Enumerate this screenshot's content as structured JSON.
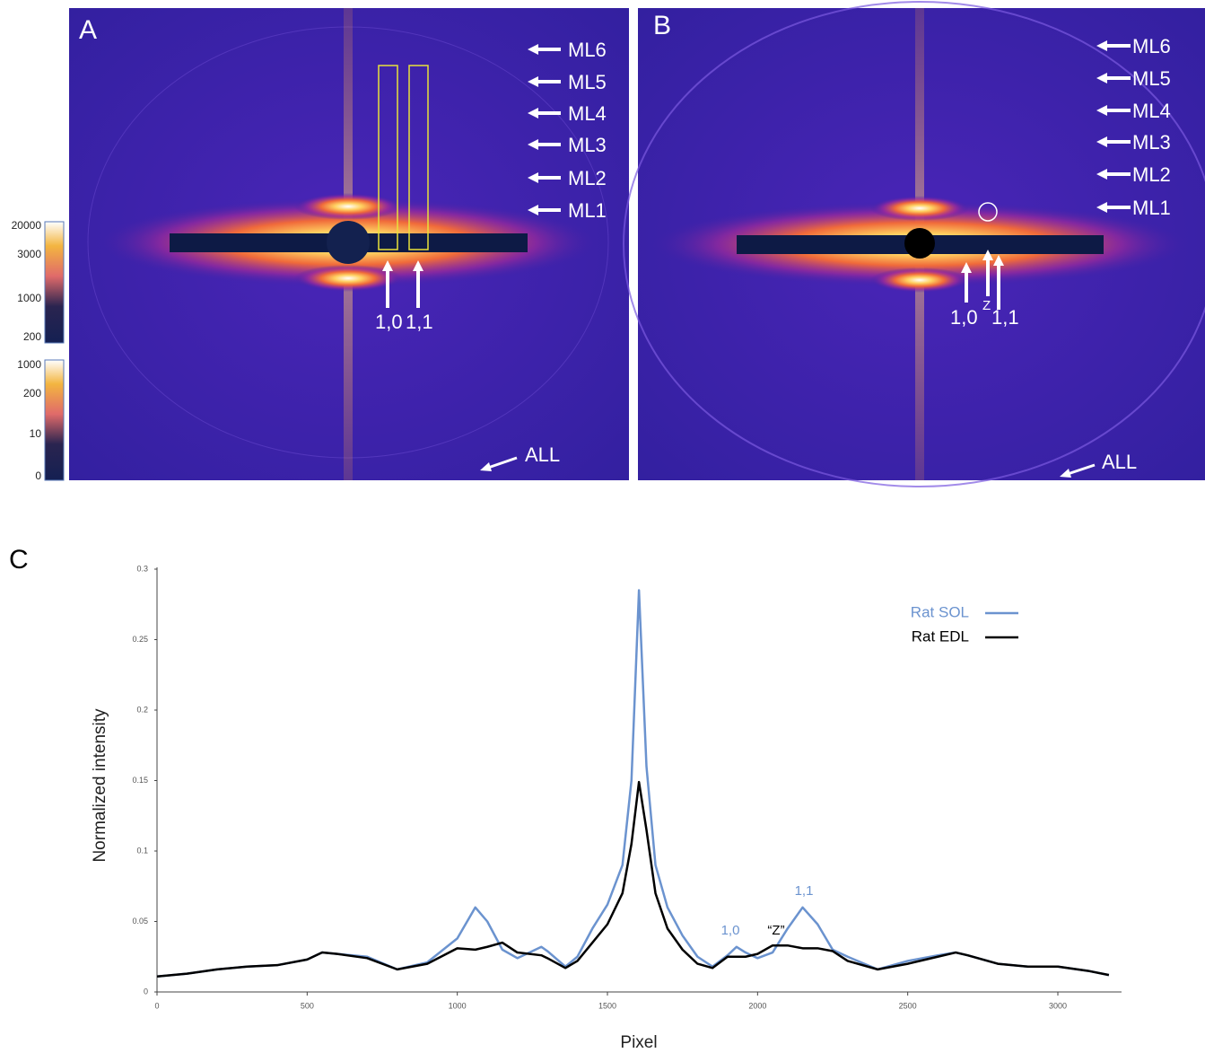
{
  "panel_a": {
    "label": "A",
    "annotations": [
      "ML6",
      "ML5",
      "ML4",
      "ML3",
      "ML2",
      "ML1"
    ],
    "reflections": [
      "1,0",
      "1,1"
    ],
    "all": "ALL"
  },
  "panel_b": {
    "label": "B",
    "annotations": [
      "ML6",
      "ML5",
      "ML4",
      "ML3",
      "ML2",
      "ML1"
    ],
    "reflections": [
      "1,0",
      "1,1"
    ],
    "z": "Z",
    "all": "ALL"
  },
  "colorbars": [
    {
      "ticks": [
        20000,
        3000,
        1000,
        200
      ]
    },
    {
      "ticks": [
        1000,
        200,
        10,
        0
      ]
    }
  ],
  "chart_data": {
    "type": "line",
    "panel_label": "C",
    "xlabel": "Pixel",
    "ylabel": "Normalized intensity",
    "xlim": [
      0,
      3200
    ],
    "xticks": [
      0,
      500,
      1000,
      1500,
      2000,
      2500,
      3000
    ],
    "ylim": [
      0,
      0.3
    ],
    "yticks": [
      0,
      0.05,
      0.1,
      0.15,
      0.2,
      0.25,
      0.3
    ],
    "legend": "upper right",
    "x": [
      0,
      100,
      200,
      300,
      400,
      500,
      550,
      600,
      700,
      800,
      900,
      1000,
      1060,
      1100,
      1150,
      1200,
      1280,
      1300,
      1360,
      1400,
      1450,
      1500,
      1550,
      1580,
      1605,
      1630,
      1660,
      1700,
      1750,
      1800,
      1850,
      1900,
      1930,
      1960,
      2000,
      2050,
      2100,
      2150,
      2200,
      2250,
      2300,
      2400,
      2500,
      2600,
      2660,
      2700,
      2800,
      2900,
      3000,
      3100,
      3170
    ],
    "series": [
      {
        "name": "Rat SOL",
        "color": "#6b93cf",
        "values": [
          0.011,
          0.013,
          0.016,
          0.018,
          0.019,
          0.023,
          0.028,
          0.027,
          0.025,
          0.016,
          0.021,
          0.038,
          0.06,
          0.05,
          0.03,
          0.024,
          0.032,
          0.029,
          0.018,
          0.025,
          0.045,
          0.062,
          0.09,
          0.15,
          0.285,
          0.16,
          0.09,
          0.06,
          0.04,
          0.025,
          0.018,
          0.026,
          0.032,
          0.028,
          0.024,
          0.028,
          0.045,
          0.06,
          0.048,
          0.03,
          0.025,
          0.016,
          0.022,
          0.026,
          0.028,
          0.026,
          0.02,
          0.018,
          0.018,
          0.015,
          0.012
        ]
      },
      {
        "name": "Rat EDL",
        "color": "#000000",
        "values": [
          0.011,
          0.013,
          0.016,
          0.018,
          0.019,
          0.023,
          0.028,
          0.027,
          0.024,
          0.016,
          0.02,
          0.031,
          0.03,
          0.032,
          0.035,
          0.028,
          0.026,
          0.024,
          0.017,
          0.022,
          0.035,
          0.048,
          0.07,
          0.105,
          0.149,
          0.115,
          0.07,
          0.045,
          0.03,
          0.02,
          0.017,
          0.025,
          0.025,
          0.025,
          0.027,
          0.033,
          0.033,
          0.031,
          0.031,
          0.029,
          0.022,
          0.016,
          0.02,
          0.025,
          0.028,
          0.026,
          0.02,
          0.018,
          0.018,
          0.015,
          0.012
        ]
      }
    ],
    "annotations": [
      {
        "text": "1,0",
        "color": "#6b93cf"
      },
      {
        "text": "“Z”",
        "color": "#000000"
      },
      {
        "text": "1,1",
        "color": "#6b93cf"
      }
    ]
  }
}
